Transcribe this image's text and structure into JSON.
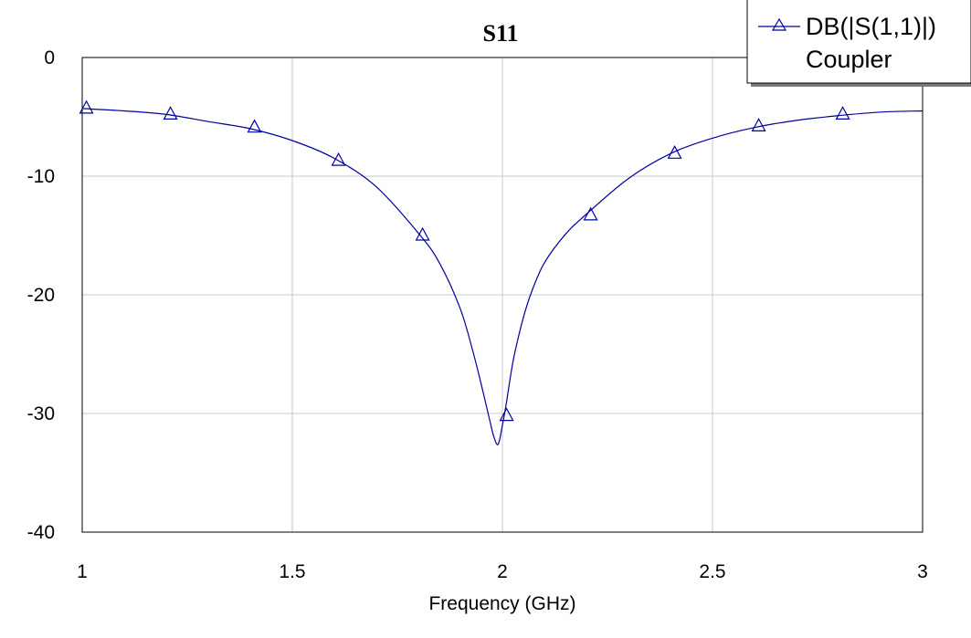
{
  "chart_data": {
    "type": "line",
    "title": "S11",
    "xlabel": "Frequency (GHz)",
    "ylabel": "",
    "xlim": [
      1,
      3
    ],
    "ylim": [
      -40,
      0
    ],
    "x_ticks": [
      "1",
      "1.5",
      "2",
      "2.5",
      "3"
    ],
    "y_ticks": [
      "0",
      "-10",
      "-20",
      "-30",
      "-40"
    ],
    "grid": true,
    "legend_position": "top-right",
    "legend": {
      "entry": "DB(|S(1,1)|)",
      "source": "Coupler"
    },
    "series": [
      {
        "name": "DB(|S(1,1)|)",
        "marker": "triangle",
        "color": "#0000a0",
        "x": [
          1.0,
          1.1,
          1.2,
          1.3,
          1.4,
          1.5,
          1.6,
          1.7,
          1.8,
          1.85,
          1.9,
          1.93,
          1.95,
          1.97,
          1.98,
          1.99,
          2.0,
          2.01,
          2.02,
          2.03,
          2.05,
          2.07,
          2.1,
          2.15,
          2.2,
          2.3,
          2.4,
          2.5,
          2.6,
          2.7,
          2.8,
          2.9,
          3.0
        ],
        "y": [
          -4.3,
          -4.5,
          -4.8,
          -5.4,
          -6.0,
          -7.0,
          -8.5,
          -10.9,
          -14.8,
          -17.3,
          -21.2,
          -24.8,
          -27.6,
          -30.6,
          -32.0,
          -32.6,
          -31.0,
          -29.0,
          -26.7,
          -24.8,
          -21.9,
          -19.7,
          -17.3,
          -14.9,
          -13.2,
          -10.2,
          -8.1,
          -6.8,
          -5.9,
          -5.3,
          -4.9,
          -4.6,
          -4.5
        ]
      }
    ],
    "markers_x": [
      1.01,
      1.21,
      1.41,
      1.61,
      1.81,
      2.01,
      2.21,
      2.41,
      2.61,
      2.81
    ],
    "markers_y": [
      -4.3,
      -4.8,
      -5.9,
      -8.7,
      -15.0,
      -30.2,
      -13.3,
      -8.1,
      -5.8,
      -4.8
    ]
  }
}
